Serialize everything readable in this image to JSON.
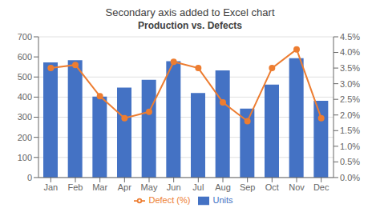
{
  "chart_data": {
    "type": "bar",
    "title": "Secondary axis added to Excel chart",
    "subtitle": "Production vs. Defects",
    "categories": [
      "Jan",
      "Feb",
      "Mar",
      "Apr",
      "May",
      "Jun",
      "Jul",
      "Aug",
      "Sep",
      "Oct",
      "Nov",
      "Dec"
    ],
    "series": [
      {
        "name": "Units",
        "type": "bar",
        "color": "#4472C4",
        "values": [
          573,
          584,
          403,
          447,
          486,
          579,
          420,
          533,
          343,
          462,
          594,
          382
        ]
      },
      {
        "name": "Defect (%)",
        "type": "line",
        "axis": "y2",
        "color": "#ED7D31",
        "marker": "circle",
        "values": [
          3.5,
          3.6,
          2.6,
          1.9,
          2.1,
          3.7,
          3.5,
          2.4,
          1.8,
          3.5,
          4.1,
          1.9
        ]
      }
    ],
    "ylim": [
      0,
      700
    ],
    "yticks": [
      0,
      100,
      200,
      300,
      400,
      500,
      600,
      700
    ],
    "y2lim": [
      0.0,
      4.5
    ],
    "y2ticks": [
      {
        "value": 0.0,
        "label": "0.0%"
      },
      {
        "value": 0.5,
        "label": "0.5%"
      },
      {
        "value": 1.0,
        "label": "1.0%"
      },
      {
        "value": 1.5,
        "label": "1.5%"
      },
      {
        "value": 2.0,
        "label": "2.0%"
      },
      {
        "value": 2.5,
        "label": "2.5%"
      },
      {
        "value": 3.0,
        "label": "3.0%"
      },
      {
        "value": 3.5,
        "label": "3.5%"
      },
      {
        "value": 4.0,
        "label": "4.0%"
      },
      {
        "value": 4.5,
        "label": "4.5%"
      }
    ],
    "grid": true,
    "legend": "bottom"
  }
}
